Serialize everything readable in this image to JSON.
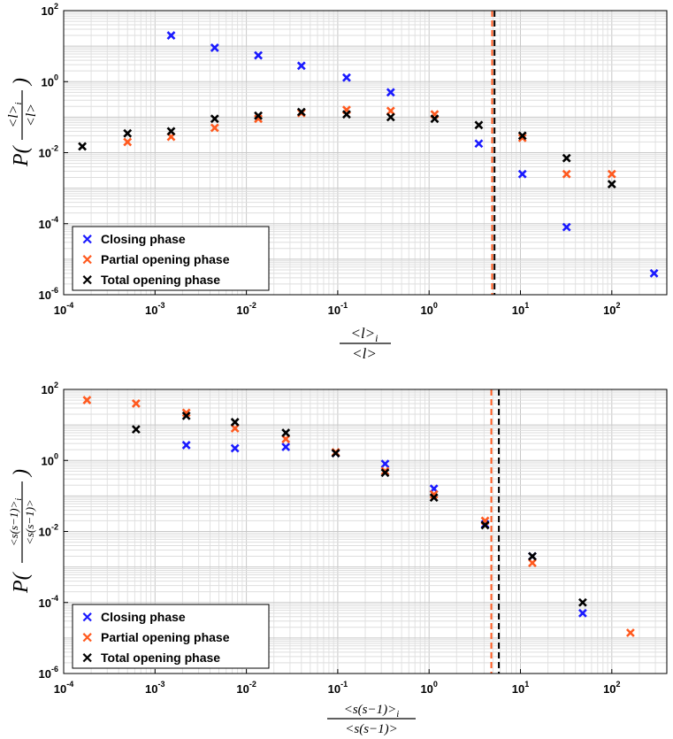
{
  "chart_data": [
    {
      "type": "scatter",
      "xscale": "log",
      "yscale": "log",
      "xlim": [
        0.0001,
        400
      ],
      "ylim": [
        1e-06,
        100
      ],
      "grid": true,
      "legend_position": "bottom-left",
      "xlabel_num": "<l>",
      "xlabel_sub": "i",
      "xlabel_den": "<l>",
      "ylabel_prefix": "P(",
      "ylabel_num": "<l>",
      "ylabel_sub": "i",
      "ylabel_den": "<l>",
      "ylabel_suffix": ")",
      "x_ticks": [
        {
          "base": "10",
          "exp": "-4",
          "value": 0.0001
        },
        {
          "base": "10",
          "exp": "-3",
          "value": 0.001
        },
        {
          "base": "10",
          "exp": "-2",
          "value": 0.01
        },
        {
          "base": "10",
          "exp": "-1",
          "value": 0.1
        },
        {
          "base": "10",
          "exp": "0",
          "value": 1
        },
        {
          "base": "10",
          "exp": "1",
          "value": 10
        },
        {
          "base": "10",
          "exp": "2",
          "value": 100
        }
      ],
      "y_ticks": [
        {
          "base": "10",
          "exp": "-6",
          "value": 1e-06
        },
        {
          "base": "10",
          "exp": "-4",
          "value": 0.0001
        },
        {
          "base": "10",
          "exp": "-2",
          "value": 0.01
        },
        {
          "base": "10",
          "exp": "0",
          "value": 1
        },
        {
          "base": "10",
          "exp": "2",
          "value": 100
        }
      ],
      "vlines": [
        {
          "x": 4.9,
          "color": "#ff5a1f"
        },
        {
          "x": 5.2,
          "color": "#000000"
        }
      ],
      "series": [
        {
          "name": "Closing phase",
          "color": "#1a1aff",
          "points": [
            [
              0.0015,
              20
            ],
            [
              0.0045,
              9
            ],
            [
              0.0135,
              5.5
            ],
            [
              0.04,
              2.8
            ],
            [
              0.125,
              1.3
            ],
            [
              0.38,
              0.5
            ],
            [
              3.5,
              0.018
            ],
            [
              10.5,
              0.0025
            ],
            [
              32,
              8e-05
            ],
            [
              290,
              4e-06
            ]
          ]
        },
        {
          "name": "Partial opening phase",
          "color": "#ff5a1f",
          "points": [
            [
              0.0005,
              0.02
            ],
            [
              0.0015,
              0.028
            ],
            [
              0.0045,
              0.05
            ],
            [
              0.0135,
              0.09
            ],
            [
              0.04,
              0.13
            ],
            [
              0.125,
              0.16
            ],
            [
              0.38,
              0.15
            ],
            [
              1.15,
              0.12
            ],
            [
              10.5,
              0.026
            ],
            [
              32,
              0.0025
            ],
            [
              100,
              0.0025
            ]
          ]
        },
        {
          "name": "Total opening phase",
          "color": "#000000",
          "points": [
            [
              0.00016,
              0.015
            ],
            [
              0.0005,
              0.035
            ],
            [
              0.0015,
              0.04
            ],
            [
              0.0045,
              0.09
            ],
            [
              0.0135,
              0.11
            ],
            [
              0.04,
              0.14
            ],
            [
              0.125,
              0.12
            ],
            [
              0.38,
              0.1
            ],
            [
              1.15,
              0.09
            ],
            [
              3.5,
              0.06
            ],
            [
              10.5,
              0.03
            ],
            [
              32,
              0.007
            ],
            [
              100,
              0.0013
            ]
          ]
        }
      ]
    },
    {
      "type": "scatter",
      "xscale": "log",
      "yscale": "log",
      "xlim": [
        0.0001,
        400
      ],
      "ylim": [
        1e-06,
        100
      ],
      "grid": true,
      "legend_position": "bottom-left",
      "xlabel_num": "<s(s−1)>",
      "xlabel_sub": "i",
      "xlabel_den": "<s(s−1)>",
      "ylabel_prefix": "P(",
      "ylabel_num": "<s(s−1)>",
      "ylabel_sub": "i",
      "ylabel_den": "<s(s−1)>",
      "ylabel_suffix": ")",
      "x_ticks": [
        {
          "base": "10",
          "exp": "-4",
          "value": 0.0001
        },
        {
          "base": "10",
          "exp": "-3",
          "value": 0.001
        },
        {
          "base": "10",
          "exp": "-2",
          "value": 0.01
        },
        {
          "base": "10",
          "exp": "-1",
          "value": 0.1
        },
        {
          "base": "10",
          "exp": "0",
          "value": 1
        },
        {
          "base": "10",
          "exp": "1",
          "value": 10
        },
        {
          "base": "10",
          "exp": "2",
          "value": 100
        }
      ],
      "y_ticks": [
        {
          "base": "10",
          "exp": "-6",
          "value": 1e-06
        },
        {
          "base": "10",
          "exp": "-4",
          "value": 0.0001
        },
        {
          "base": "10",
          "exp": "-2",
          "value": 0.01
        },
        {
          "base": "10",
          "exp": "0",
          "value": 1
        },
        {
          "base": "10",
          "exp": "2",
          "value": 100
        }
      ],
      "vlines": [
        {
          "x": 4.8,
          "color": "#ff5a1f"
        },
        {
          "x": 5.8,
          "color": "#000000"
        }
      ],
      "series": [
        {
          "name": "Closing phase",
          "color": "#1a1aff",
          "points": [
            [
              0.0022,
              2.7
            ],
            [
              0.0075,
              2.2
            ],
            [
              0.027,
              2.4
            ],
            [
              0.095,
              1.6
            ],
            [
              0.33,
              0.8
            ],
            [
              1.13,
              0.16
            ],
            [
              4.1,
              0.016
            ],
            [
              13.5,
              0.002
            ],
            [
              48,
              5e-05
            ]
          ]
        },
        {
          "name": "Partial opening phase",
          "color": "#ff5a1f",
          "points": [
            [
              0.00018,
              50
            ],
            [
              0.00062,
              40
            ],
            [
              0.0022,
              22
            ],
            [
              0.0075,
              8
            ],
            [
              0.027,
              4
            ],
            [
              0.095,
              1.7
            ],
            [
              0.33,
              0.5
            ],
            [
              1.13,
              0.11
            ],
            [
              4.1,
              0.02
            ],
            [
              13.5,
              0.0013
            ],
            [
              160,
              1.4e-05
            ]
          ]
        },
        {
          "name": "Total opening phase",
          "color": "#000000",
          "points": [
            [
              0.00062,
              7.5
            ],
            [
              0.0022,
              18
            ],
            [
              0.0075,
              12
            ],
            [
              0.027,
              6
            ],
            [
              0.095,
              1.6
            ],
            [
              0.33,
              0.45
            ],
            [
              1.13,
              0.09
            ],
            [
              4.1,
              0.015
            ],
            [
              13.5,
              0.002
            ],
            [
              48,
              0.0001
            ]
          ]
        }
      ]
    }
  ]
}
